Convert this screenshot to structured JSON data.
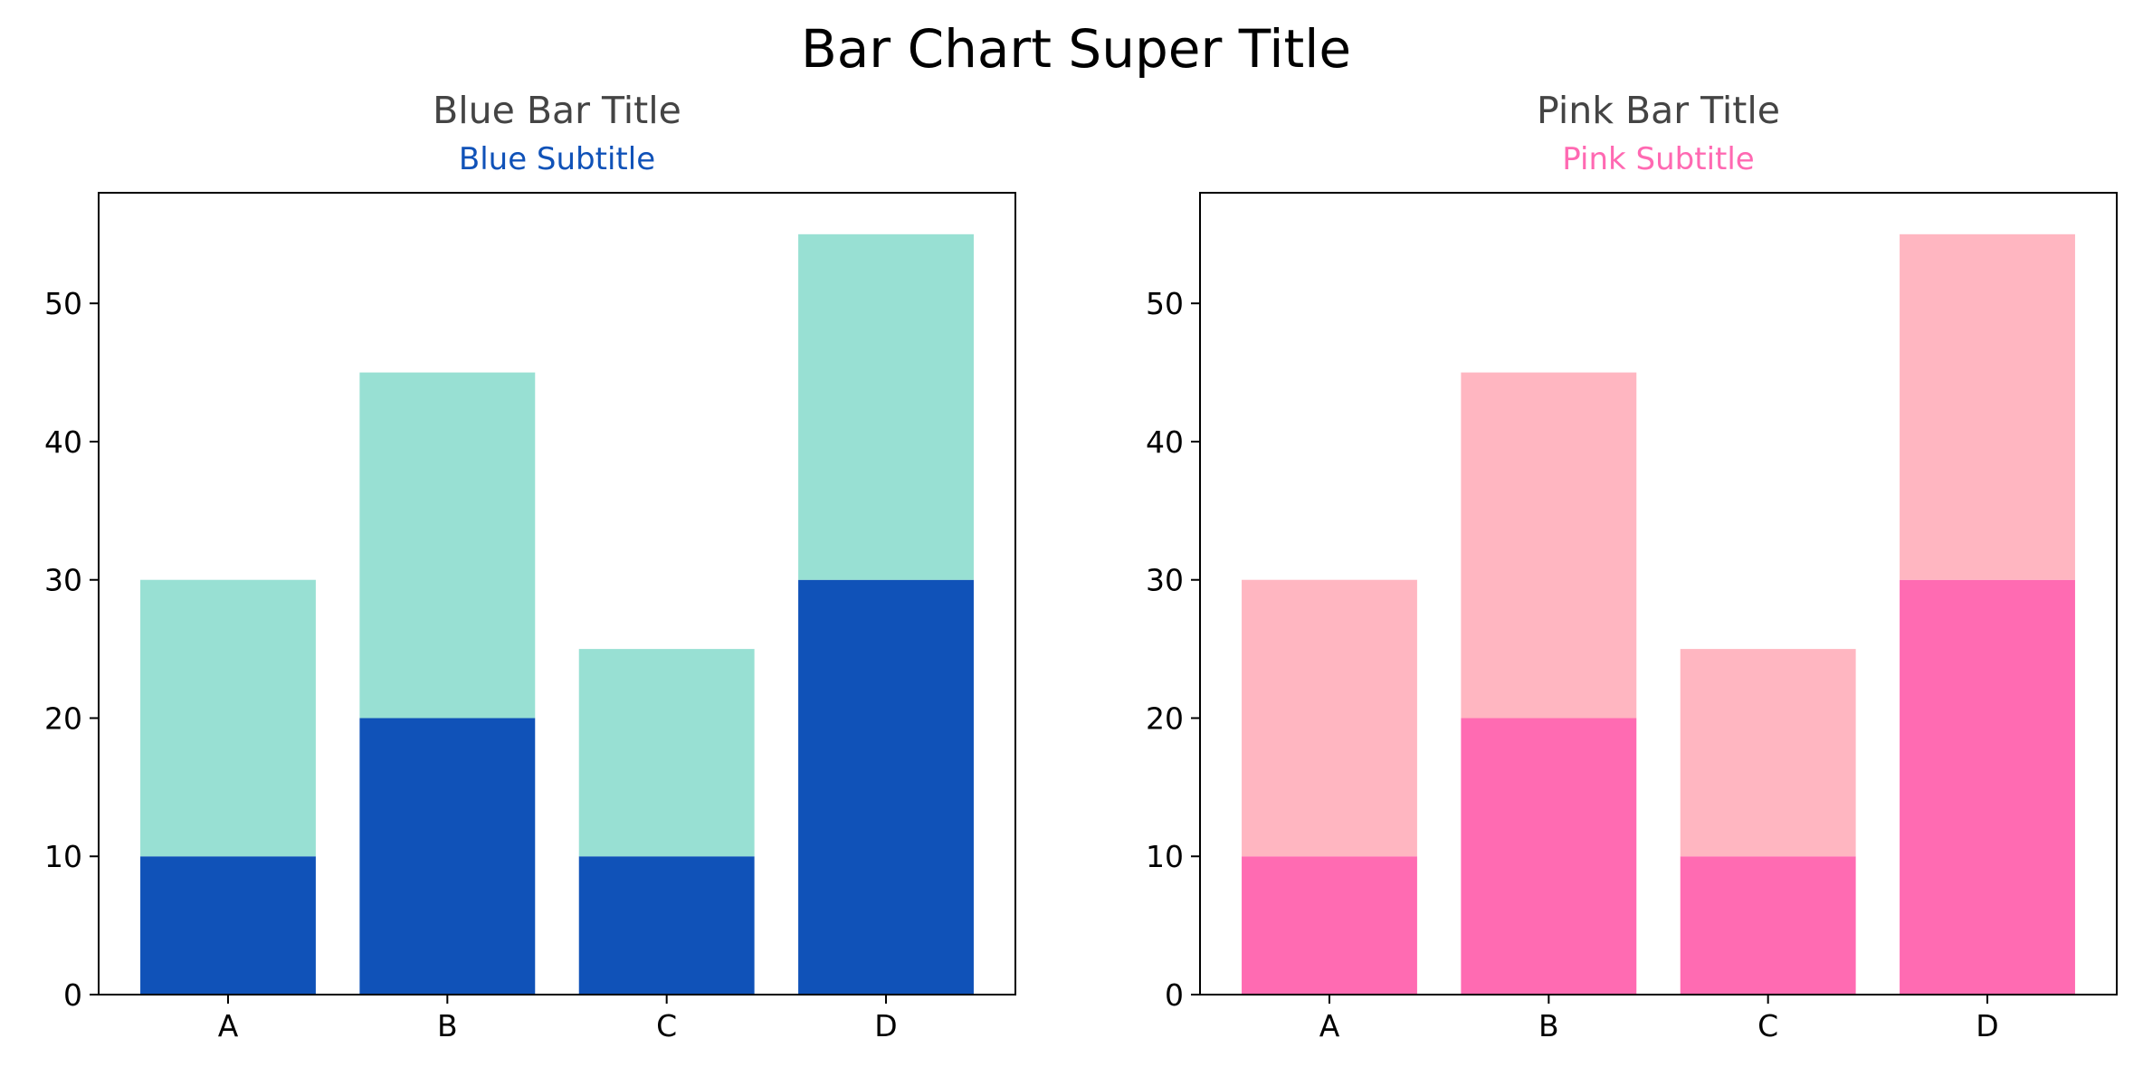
{
  "figure": {
    "suptitle": "Bar Chart Super Title",
    "background": "#ffffff"
  },
  "chart_data": [
    {
      "type": "bar",
      "stacked": true,
      "title": "Blue Bar Title",
      "subtitle": "Blue Subtitle",
      "title_color": "#444444",
      "subtitle_color": "#1052b8",
      "categories": [
        "A",
        "B",
        "C",
        "D"
      ],
      "ylim": [
        0,
        58
      ],
      "yticks": [
        0,
        10,
        20,
        30,
        40,
        50
      ],
      "xlabel": "",
      "ylabel": "",
      "grid": false,
      "legend": "none",
      "series": [
        {
          "values": [
            10,
            20,
            10,
            30
          ],
          "color": "#1052b8"
        },
        {
          "values": [
            20,
            25,
            15,
            25
          ],
          "color": "#98e0d3"
        }
      ]
    },
    {
      "type": "bar",
      "stacked": true,
      "title": "Pink Bar Title",
      "subtitle": "Pink Subtitle",
      "title_color": "#444444",
      "subtitle_color": "#ff69b2",
      "categories": [
        "A",
        "B",
        "C",
        "D"
      ],
      "ylim": [
        0,
        58
      ],
      "yticks": [
        0,
        10,
        20,
        30,
        40,
        50
      ],
      "xlabel": "",
      "ylabel": "",
      "grid": false,
      "legend": "none",
      "series": [
        {
          "values": [
            10,
            20,
            10,
            30
          ],
          "color": "#ff6bb2"
        },
        {
          "values": [
            20,
            25,
            15,
            25
          ],
          "color": "#ffb6c1"
        }
      ]
    }
  ]
}
